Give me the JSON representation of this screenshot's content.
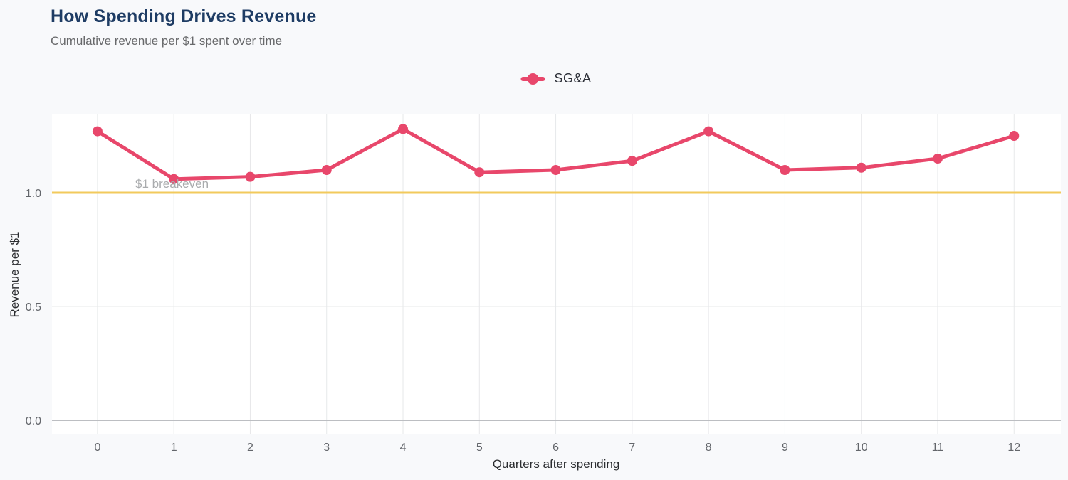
{
  "header": {
    "title": "How Spending Drives Revenue",
    "subtitle": "Cumulative revenue per $1 spent over time"
  },
  "legend": {
    "items": [
      {
        "label": "SG&A",
        "color": "#e8476b"
      }
    ]
  },
  "colors": {
    "page_background": "#f8f9fb",
    "plot_background": "#ffffff",
    "series_accent": "#e8476b",
    "breakeven_line": "#f2ca5c",
    "gridline": "#e7e8ea",
    "zero_line": "#bcbec2",
    "title_text": "#1e3c64"
  },
  "chart_data": {
    "type": "line",
    "title": "How Spending Drives Revenue",
    "subtitle": "Cumulative revenue per $1 spent over time",
    "xlabel": "Quarters after spending",
    "ylabel": "Revenue per $1",
    "x": [
      0,
      1,
      2,
      3,
      4,
      5,
      6,
      7,
      8,
      9,
      10,
      11,
      12
    ],
    "x_tick_labels": [
      "0",
      "1",
      "2",
      "3",
      "4",
      "5",
      "6",
      "7",
      "8",
      "9",
      "10",
      "11",
      "12"
    ],
    "y_ticks": [
      0.0,
      0.5,
      1.0
    ],
    "y_tick_labels": [
      "0.0",
      "0.5",
      "1.0"
    ],
    "ylim": [
      -0.06,
      1.34
    ],
    "grid": true,
    "legend_position": "top-center",
    "series": [
      {
        "name": "SG&A",
        "color": "#e8476b",
        "values": [
          1.27,
          1.06,
          1.07,
          1.1,
          1.28,
          1.09,
          1.1,
          1.14,
          1.27,
          1.1,
          1.11,
          1.15,
          1.25
        ]
      }
    ],
    "reference_line": {
      "y": 1.0,
      "label": "$1 breakeven",
      "color": "#f2ca5c"
    }
  }
}
